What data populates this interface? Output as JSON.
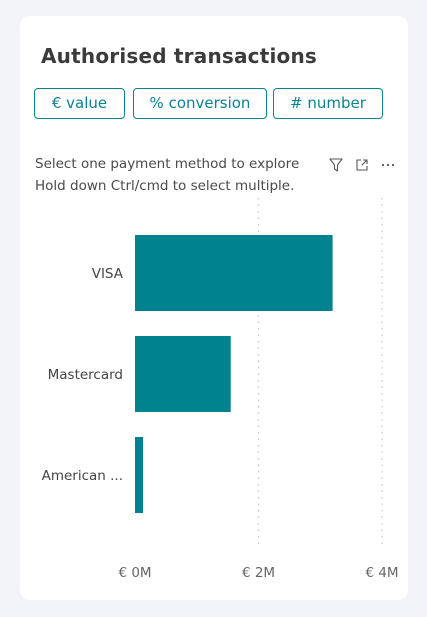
{
  "card": {
    "title": "Authorised transactions",
    "toggle_buttons": [
      {
        "label": "€ value",
        "active": true
      },
      {
        "label": "% conversion",
        "active": false
      },
      {
        "label": "# number",
        "active": false
      }
    ],
    "hint_line1": "Select one payment method to explore",
    "hint_line2": "Hold down Ctrl/cmd to select multiple.",
    "icons": [
      "filter-icon",
      "expand-icon",
      "more-options-icon"
    ]
  },
  "colors": {
    "accent": "#0a8390",
    "bar": "#00828f",
    "card_bg": "#ffffff",
    "page_bg": "#f3f4f8"
  },
  "chart_data": {
    "type": "bar",
    "orientation": "horizontal",
    "categories": [
      "VISA",
      "Mastercard",
      "American ..."
    ],
    "values": [
      3200000,
      1550000,
      130000
    ],
    "xlim": [
      0,
      4000000
    ],
    "xticks": [
      0,
      2000000,
      4000000
    ],
    "xtick_labels": [
      "€ 0M",
      "€ 2M",
      "€ 4M"
    ],
    "grid": true,
    "legend": "none"
  }
}
